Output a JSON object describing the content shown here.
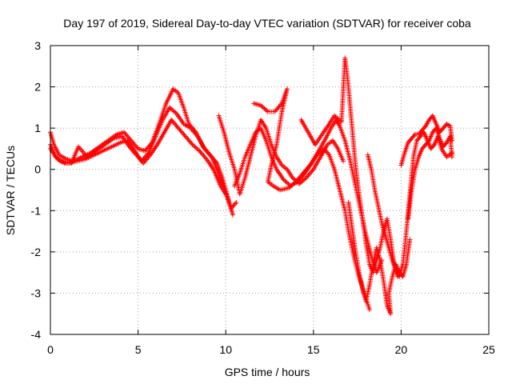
{
  "chart_data": {
    "type": "scatter",
    "title": "Day 197 of 2019, Sidereal Day-to-day VTEC variation (SDTVAR) for receiver coba",
    "xlabel": "GPS time / hours",
    "ylabel": "SDTVAR / TECUs",
    "xlim": [
      0,
      25
    ],
    "ylim": [
      -4,
      3
    ],
    "xticks": [
      "0",
      "5",
      "10",
      "15",
      "20",
      "25"
    ],
    "yticks": [
      "-4",
      "-3",
      "-2",
      "-1",
      "0",
      "1",
      "2",
      "3"
    ],
    "grid": true,
    "marker": "+",
    "marker_color": "#ff0000",
    "series": [
      {
        "points": [
          [
            0.0,
            0.9
          ],
          [
            0.2,
            0.6
          ],
          [
            0.5,
            0.35
          ],
          [
            0.9,
            0.25
          ],
          [
            1.3,
            0.2
          ],
          [
            1.8,
            0.3
          ],
          [
            2.3,
            0.4
          ],
          [
            2.8,
            0.55
          ],
          [
            3.3,
            0.7
          ],
          [
            3.8,
            0.85
          ],
          [
            4.2,
            0.9
          ],
          [
            4.6,
            0.7
          ],
          [
            5.0,
            0.5
          ],
          [
            5.4,
            0.45
          ],
          [
            5.8,
            0.65
          ],
          [
            6.2,
            1.1
          ],
          [
            6.6,
            1.6
          ],
          [
            7.0,
            1.95
          ],
          [
            7.3,
            1.85
          ],
          [
            7.6,
            1.5
          ],
          [
            7.9,
            1.1
          ],
          [
            8.3,
            0.9
          ],
          [
            8.7,
            0.55
          ],
          [
            9.1,
            0.35
          ],
          [
            9.5,
            0.15
          ],
          [
            9.8,
            -0.2
          ],
          [
            10.0,
            -0.5
          ],
          [
            10.2,
            -0.8
          ],
          [
            10.4,
            -1.1
          ]
        ]
      },
      {
        "points": [
          [
            0.0,
            0.6
          ],
          [
            0.3,
            0.3
          ],
          [
            0.6,
            0.2
          ],
          [
            1.0,
            0.15
          ],
          [
            1.5,
            0.2
          ],
          [
            2.0,
            0.25
          ],
          [
            2.5,
            0.35
          ],
          [
            3.0,
            0.45
          ],
          [
            3.5,
            0.55
          ],
          [
            4.0,
            0.65
          ],
          [
            4.4,
            0.7
          ],
          [
            4.8,
            0.45
          ],
          [
            5.2,
            0.2
          ],
          [
            5.6,
            0.4
          ],
          [
            6.0,
            0.8
          ],
          [
            6.4,
            1.2
          ],
          [
            6.8,
            1.5
          ],
          [
            7.2,
            1.35
          ],
          [
            7.6,
            1.1
          ],
          [
            8.0,
            1.0
          ],
          [
            8.4,
            0.8
          ],
          [
            8.8,
            0.5
          ],
          [
            9.2,
            0.3
          ],
          [
            9.5,
            0.0
          ],
          [
            9.8,
            -0.35
          ],
          [
            10.1,
            -0.7
          ],
          [
            10.3,
            -0.95
          ],
          [
            10.6,
            -0.8
          ]
        ]
      },
      {
        "points": [
          [
            0.0,
            0.5
          ],
          [
            0.4,
            0.25
          ],
          [
            0.8,
            0.15
          ],
          [
            1.2,
            0.15
          ],
          [
            1.6,
            0.55
          ],
          [
            2.1,
            0.3
          ],
          [
            2.6,
            0.45
          ],
          [
            3.1,
            0.6
          ],
          [
            3.6,
            0.75
          ],
          [
            4.1,
            0.8
          ],
          [
            4.5,
            0.55
          ],
          [
            4.9,
            0.35
          ],
          [
            5.3,
            0.15
          ],
          [
            5.7,
            0.35
          ],
          [
            6.1,
            0.6
          ],
          [
            6.5,
            0.9
          ],
          [
            6.9,
            1.2
          ],
          [
            7.3,
            1.0
          ],
          [
            7.7,
            0.8
          ],
          [
            8.1,
            0.6
          ],
          [
            8.5,
            0.45
          ],
          [
            8.9,
            0.25
          ],
          [
            9.3,
            0.0
          ],
          [
            9.7,
            -0.4
          ],
          [
            10.0,
            -0.6
          ]
        ]
      },
      {
        "points": [
          [
            9.6,
            1.3
          ],
          [
            9.9,
            0.9
          ],
          [
            10.2,
            0.4
          ],
          [
            10.5,
            0.0
          ],
          [
            10.8,
            -0.6
          ],
          [
            11.1,
            -0.2
          ],
          [
            11.4,
            0.3
          ],
          [
            11.7,
            0.8
          ],
          [
            12.0,
            1.2
          ],
          [
            12.3,
            1.0
          ],
          [
            12.6,
            0.6
          ],
          [
            12.9,
            0.3
          ],
          [
            13.2,
            0.1
          ],
          [
            13.5,
            0.0
          ],
          [
            13.8,
            -0.2
          ],
          [
            14.2,
            -0.35
          ],
          [
            14.6,
            -0.2
          ],
          [
            15.0,
            0.0
          ],
          [
            15.4,
            0.3
          ],
          [
            15.8,
            0.6
          ],
          [
            16.1,
            0.7
          ],
          [
            16.4,
            0.5
          ],
          [
            16.7,
            0.2
          ]
        ]
      },
      {
        "points": [
          [
            10.5,
            -0.4
          ],
          [
            10.8,
            -0.1
          ],
          [
            11.1,
            0.3
          ],
          [
            11.4,
            0.6
          ],
          [
            11.7,
            0.9
          ],
          [
            12.0,
            1.0
          ],
          [
            12.3,
            0.7
          ],
          [
            12.6,
            0.3
          ],
          [
            12.9,
            0.0
          ],
          [
            13.3,
            -0.25
          ],
          [
            13.7,
            -0.4
          ],
          [
            14.1,
            -0.3
          ],
          [
            14.5,
            -0.1
          ],
          [
            14.9,
            0.15
          ],
          [
            15.3,
            0.45
          ],
          [
            15.7,
            0.75
          ],
          [
            16.0,
            1.0
          ],
          [
            16.3,
            1.2
          ],
          [
            16.5,
            1.05
          ],
          [
            16.8,
            0.7
          ],
          [
            17.1,
            0.2
          ],
          [
            17.4,
            -0.4
          ],
          [
            17.7,
            -1.0
          ],
          [
            18.0,
            -1.6
          ],
          [
            18.3,
            -2.1
          ],
          [
            18.6,
            -2.5
          ],
          [
            18.9,
            -2.2
          ]
        ]
      },
      {
        "points": [
          [
            11.6,
            1.6
          ],
          [
            12.0,
            1.55
          ],
          [
            12.4,
            1.4
          ],
          [
            12.8,
            1.4
          ],
          [
            13.2,
            1.6
          ],
          [
            13.5,
            1.95
          ],
          [
            13.2,
            1.4
          ],
          [
            12.9,
            0.6
          ],
          [
            12.6,
            0.1
          ],
          [
            12.4,
            -0.3
          ],
          [
            12.7,
            -0.4
          ],
          [
            13.1,
            -0.5
          ],
          [
            13.6,
            -0.45
          ],
          [
            14.0,
            -0.3
          ],
          [
            14.4,
            -0.1
          ],
          [
            14.8,
            0.1
          ],
          [
            15.2,
            0.35
          ],
          [
            15.6,
            0.5
          ],
          [
            15.9,
            0.35
          ],
          [
            16.2,
            0.0
          ],
          [
            16.5,
            -0.5
          ],
          [
            16.8,
            -1.0
          ],
          [
            17.0,
            -1.5
          ],
          [
            17.3,
            -2.1
          ],
          [
            17.6,
            -2.6
          ],
          [
            17.9,
            -3.0
          ],
          [
            18.2,
            -3.4
          ]
        ]
      },
      {
        "points": [
          [
            14.3,
            1.2
          ],
          [
            14.7,
            0.9
          ],
          [
            15.1,
            0.6
          ],
          [
            15.5,
            0.85
          ],
          [
            15.9,
            1.1
          ],
          [
            16.2,
            1.3
          ],
          [
            16.6,
            1.15
          ],
          [
            16.8,
            2.7
          ],
          [
            16.95,
            2.2
          ],
          [
            17.1,
            1.5
          ],
          [
            17.25,
            0.8
          ],
          [
            17.4,
            0.1
          ],
          [
            17.6,
            -0.6
          ],
          [
            17.8,
            -1.2
          ],
          [
            18.0,
            -1.8
          ],
          [
            18.2,
            -2.3
          ],
          [
            18.4,
            -2.5
          ],
          [
            18.6,
            -2.2
          ],
          [
            18.8,
            -1.9
          ],
          [
            19.0,
            -1.5
          ],
          [
            19.2,
            -1.2
          ],
          [
            19.4,
            -1.7
          ],
          [
            19.6,
            -2.3
          ],
          [
            19.8,
            -2.6
          ]
        ]
      },
      {
        "points": [
          [
            17.0,
            -0.8
          ],
          [
            17.2,
            -1.4
          ],
          [
            17.4,
            -2.0
          ],
          [
            17.6,
            -2.5
          ],
          [
            17.8,
            -2.9
          ],
          [
            18.0,
            -3.2
          ],
          [
            18.2,
            -2.8
          ],
          [
            18.4,
            -2.3
          ],
          [
            18.6,
            -1.9
          ],
          [
            18.8,
            -2.2
          ],
          [
            19.0,
            -2.7
          ],
          [
            19.2,
            -3.3
          ],
          [
            19.4,
            -3.5
          ],
          [
            19.3,
            -3.0
          ],
          [
            19.5,
            -2.6
          ],
          [
            19.7,
            -2.3
          ],
          [
            19.9,
            -2.5
          ],
          [
            20.1,
            -2.6
          ],
          [
            20.3,
            -2.3
          ],
          [
            20.5,
            -1.7
          ]
        ]
      },
      {
        "points": [
          [
            18.1,
            0.35
          ],
          [
            18.3,
            0.0
          ],
          [
            18.5,
            -0.5
          ],
          [
            18.7,
            -0.9
          ],
          [
            18.9,
            -1.3
          ],
          [
            19.1,
            -1.6
          ],
          [
            19.3,
            -1.9
          ],
          [
            19.5,
            -2.2
          ],
          [
            19.7,
            -2.45
          ],
          [
            19.9,
            -2.6
          ],
          [
            20.1,
            -2.3
          ],
          [
            20.3,
            -1.5
          ],
          [
            20.5,
            -0.6
          ],
          [
            20.7,
            0.3
          ],
          [
            20.9,
            0.7
          ],
          [
            21.1,
            0.8
          ],
          [
            21.3,
            0.9
          ],
          [
            21.5,
            0.7
          ],
          [
            21.7,
            0.5
          ],
          [
            21.9,
            0.6
          ],
          [
            22.1,
            0.8
          ],
          [
            22.3,
            0.5
          ],
          [
            22.6,
            0.3
          ],
          [
            22.9,
            0.4
          ]
        ]
      },
      {
        "points": [
          [
            20.0,
            0.1
          ],
          [
            20.2,
            0.4
          ],
          [
            20.4,
            0.65
          ],
          [
            20.6,
            0.75
          ],
          [
            20.8,
            0.85
          ],
          [
            21.0,
            0.85
          ],
          [
            21.2,
            0.95
          ],
          [
            21.4,
            1.05
          ],
          [
            21.6,
            1.2
          ],
          [
            21.8,
            1.3
          ],
          [
            22.0,
            1.1
          ],
          [
            22.2,
            0.9
          ],
          [
            22.4,
            1.0
          ],
          [
            22.6,
            1.1
          ],
          [
            22.8,
            1.05
          ],
          [
            22.9,
            0.7
          ]
        ]
      },
      {
        "points": [
          [
            20.4,
            -1.2
          ],
          [
            20.6,
            -0.5
          ],
          [
            20.8,
            0.0
          ],
          [
            21.0,
            0.3
          ],
          [
            21.2,
            0.5
          ],
          [
            21.4,
            0.6
          ],
          [
            21.6,
            0.7
          ],
          [
            21.8,
            0.9
          ],
          [
            22.0,
            1.0
          ],
          [
            22.2,
            0.75
          ],
          [
            22.4,
            0.55
          ],
          [
            22.6,
            0.65
          ],
          [
            22.8,
            0.8
          ],
          [
            22.9,
            0.3
          ]
        ]
      }
    ]
  }
}
